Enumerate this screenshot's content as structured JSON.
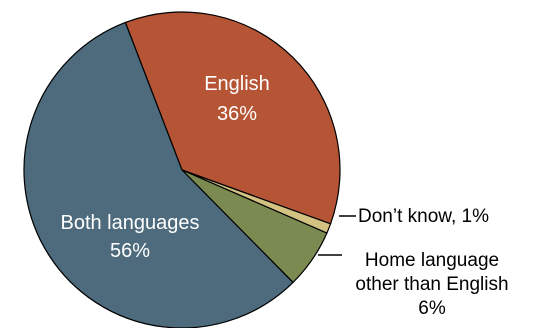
{
  "chart_data": {
    "type": "pie",
    "slices": [
      {
        "label": "English",
        "percent_label": "36%",
        "value": 36,
        "color": "#b65535"
      },
      {
        "label": "Don’t know, 1%",
        "percent_label": "",
        "value": 1,
        "color": "#d4c283"
      },
      {
        "label_lines": [
          "Home language",
          "other than English"
        ],
        "percent_label": "6%",
        "value": 6,
        "color": "#7a8a50"
      },
      {
        "label": "Both languages",
        "percent_label": "56%",
        "value": 56,
        "color": "#4d6b7d"
      }
    ],
    "legend": "none"
  }
}
